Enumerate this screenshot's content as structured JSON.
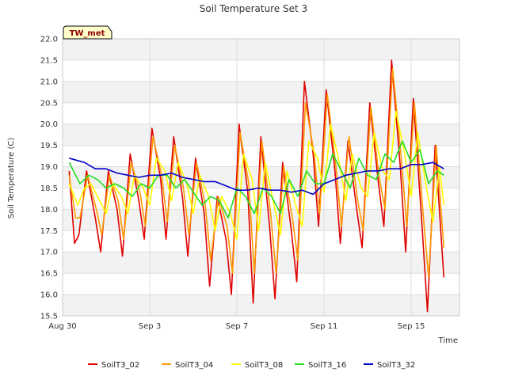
{
  "chart_data": {
    "type": "line",
    "title": "Soil Temperature Set 3",
    "xlabel": "Time",
    "ylabel": "Soil Temperature (C)",
    "badge": "TW_met",
    "x_unit": "days since Aug 30",
    "x_range_days": [
      0,
      18.5
    ],
    "ylim": [
      15.5,
      22.0
    ],
    "y_ticks": [
      15.5,
      16.0,
      16.5,
      17.0,
      17.5,
      18.0,
      18.5,
      19.0,
      19.5,
      20.0,
      20.5,
      21.0,
      21.5,
      22.0
    ],
    "x_ticks": [
      {
        "label": "Aug 30",
        "day": 0
      },
      {
        "label": "Sep 3",
        "day": 4
      },
      {
        "label": "Sep 7",
        "day": 8
      },
      {
        "label": "Sep 11",
        "day": 12
      },
      {
        "label": "Sep 15",
        "day": 16
      }
    ],
    "grid": true,
    "legend_position": "bottom",
    "series": [
      {
        "name": "SoilT3_02",
        "color": "#e00000",
        "x": [
          0.3,
          0.55,
          0.75,
          1.1,
          1.5,
          1.75,
          2.1,
          2.5,
          2.75,
          3.1,
          3.5,
          3.75,
          4.1,
          4.5,
          4.75,
          5.1,
          5.5,
          5.75,
          6.1,
          6.5,
          6.75,
          7.1,
          7.5,
          7.75,
          8.1,
          8.5,
          8.75,
          9.1,
          9.5,
          9.75,
          10.1,
          10.5,
          10.75,
          11.1,
          11.5,
          11.75,
          12.1,
          12.5,
          12.75,
          13.1,
          13.5,
          13.75,
          14.1,
          14.5,
          14.75,
          15.1,
          15.5,
          15.75,
          16.1,
          16.5,
          16.75,
          17.1,
          17.5
        ],
        "y": [
          18.9,
          17.2,
          17.4,
          18.9,
          17.8,
          17.0,
          18.9,
          18.0,
          16.9,
          19.3,
          18.2,
          17.3,
          19.9,
          18.7,
          17.3,
          19.7,
          18.3,
          16.9,
          19.2,
          17.9,
          16.2,
          18.3,
          17.3,
          16.0,
          20.0,
          18.4,
          15.8,
          19.7,
          17.6,
          15.9,
          19.1,
          17.5,
          16.3,
          21.0,
          19.3,
          17.6,
          20.8,
          18.9,
          17.2,
          19.6,
          18.0,
          17.1,
          20.5,
          18.6,
          17.6,
          21.5,
          19.0,
          17.0,
          20.6,
          17.6,
          15.6,
          19.5,
          16.4
        ]
      },
      {
        "name": "SoilT3_04",
        "color": "#ff9a00",
        "x": [
          0.3,
          0.6,
          0.8,
          1.15,
          1.55,
          1.8,
          2.15,
          2.55,
          2.8,
          3.15,
          3.55,
          3.8,
          4.15,
          4.55,
          4.8,
          5.15,
          5.55,
          5.8,
          6.15,
          6.55,
          6.8,
          7.15,
          7.55,
          7.8,
          8.15,
          8.55,
          8.8,
          9.15,
          9.55,
          9.8,
          10.15,
          10.55,
          10.8,
          11.15,
          11.55,
          11.8,
          12.15,
          12.55,
          12.8,
          13.15,
          13.55,
          13.8,
          14.15,
          14.55,
          14.8,
          15.15,
          15.55,
          15.8,
          16.15,
          16.55,
          16.8,
          17.15,
          17.5
        ],
        "y": [
          18.8,
          17.8,
          17.8,
          18.8,
          18.0,
          17.4,
          18.8,
          18.2,
          17.3,
          19.1,
          18.4,
          17.6,
          19.7,
          18.8,
          17.7,
          19.5,
          18.5,
          17.4,
          19.1,
          18.1,
          16.8,
          18.3,
          17.6,
          16.5,
          19.8,
          18.6,
          16.5,
          19.6,
          17.9,
          16.5,
          19.0,
          17.8,
          16.8,
          20.5,
          19.3,
          17.9,
          20.7,
          19.0,
          17.6,
          19.7,
          18.2,
          17.5,
          20.4,
          18.7,
          18.0,
          21.3,
          19.2,
          17.6,
          20.5,
          17.9,
          16.4,
          19.5,
          17.1
        ]
      },
      {
        "name": "SoilT3_08",
        "color": "#ffff00",
        "x": [
          0.3,
          0.7,
          1.0,
          1.3,
          1.7,
          2.0,
          2.3,
          2.7,
          3.0,
          3.3,
          3.7,
          4.0,
          4.3,
          4.7,
          5.0,
          5.3,
          5.7,
          6.0,
          6.3,
          6.7,
          7.0,
          7.3,
          7.7,
          8.0,
          8.3,
          8.7,
          9.0,
          9.3,
          9.7,
          10.0,
          10.3,
          10.7,
          11.0,
          11.3,
          11.7,
          12.0,
          12.3,
          12.7,
          13.0,
          13.3,
          13.7,
          14.0,
          14.3,
          14.7,
          15.0,
          15.3,
          15.7,
          16.0,
          16.3,
          16.7,
          17.0,
          17.3,
          17.5
        ],
        "y": [
          18.6,
          18.1,
          18.5,
          18.6,
          18.2,
          17.9,
          18.6,
          18.3,
          17.9,
          18.8,
          18.5,
          18.1,
          19.2,
          18.9,
          18.2,
          19.1,
          18.6,
          17.9,
          18.8,
          18.3,
          17.5,
          18.3,
          17.9,
          17.3,
          19.3,
          18.7,
          17.5,
          19.1,
          18.1,
          17.4,
          18.9,
          18.1,
          17.6,
          19.6,
          19.2,
          18.4,
          20.0,
          19.1,
          18.2,
          19.3,
          18.5,
          18.3,
          19.8,
          18.9,
          18.7,
          20.3,
          19.3,
          18.3,
          19.8,
          18.5,
          17.7,
          19.0,
          18.1
        ]
      },
      {
        "name": "SoilT3_16",
        "color": "#22dd22",
        "x": [
          0.3,
          0.8,
          1.2,
          1.6,
          2.0,
          2.4,
          2.8,
          3.2,
          3.6,
          4.0,
          4.4,
          4.8,
          5.2,
          5.6,
          6.0,
          6.4,
          6.8,
          7.2,
          7.6,
          8.0,
          8.4,
          8.8,
          9.2,
          9.6,
          10.0,
          10.4,
          10.8,
          11.2,
          11.6,
          12.0,
          12.4,
          12.8,
          13.2,
          13.6,
          14.0,
          14.4,
          14.8,
          15.2,
          15.6,
          16.0,
          16.4,
          16.8,
          17.2,
          17.5
        ],
        "y": [
          19.1,
          18.6,
          18.8,
          18.7,
          18.5,
          18.6,
          18.5,
          18.3,
          18.6,
          18.5,
          18.8,
          18.8,
          18.5,
          18.7,
          18.4,
          18.1,
          18.3,
          18.2,
          17.8,
          18.5,
          18.3,
          17.9,
          18.5,
          18.3,
          17.9,
          18.7,
          18.3,
          18.9,
          18.6,
          18.6,
          19.3,
          18.9,
          18.5,
          19.2,
          18.8,
          18.7,
          19.3,
          19.1,
          19.6,
          19.1,
          19.4,
          18.6,
          18.9,
          18.8
        ]
      },
      {
        "name": "SoilT3_32",
        "color": "#0000cc",
        "x": [
          0.3,
          1.0,
          1.5,
          2.0,
          2.5,
          3.0,
          3.5,
          4.0,
          4.5,
          5.0,
          5.5,
          6.0,
          6.5,
          7.0,
          7.5,
          8.0,
          8.5,
          9.0,
          9.5,
          10.0,
          10.5,
          11.0,
          11.5,
          12.0,
          12.5,
          13.0,
          13.5,
          14.0,
          14.5,
          15.0,
          15.5,
          16.0,
          16.5,
          17.0,
          17.5
        ],
        "y": [
          19.2,
          19.1,
          18.95,
          18.95,
          18.85,
          18.8,
          18.75,
          18.8,
          18.8,
          18.85,
          18.75,
          18.7,
          18.65,
          18.65,
          18.55,
          18.45,
          18.45,
          18.5,
          18.45,
          18.45,
          18.4,
          18.45,
          18.35,
          18.6,
          18.7,
          18.8,
          18.85,
          18.9,
          18.9,
          18.95,
          18.95,
          19.05,
          19.05,
          19.1,
          18.95
        ]
      }
    ]
  }
}
